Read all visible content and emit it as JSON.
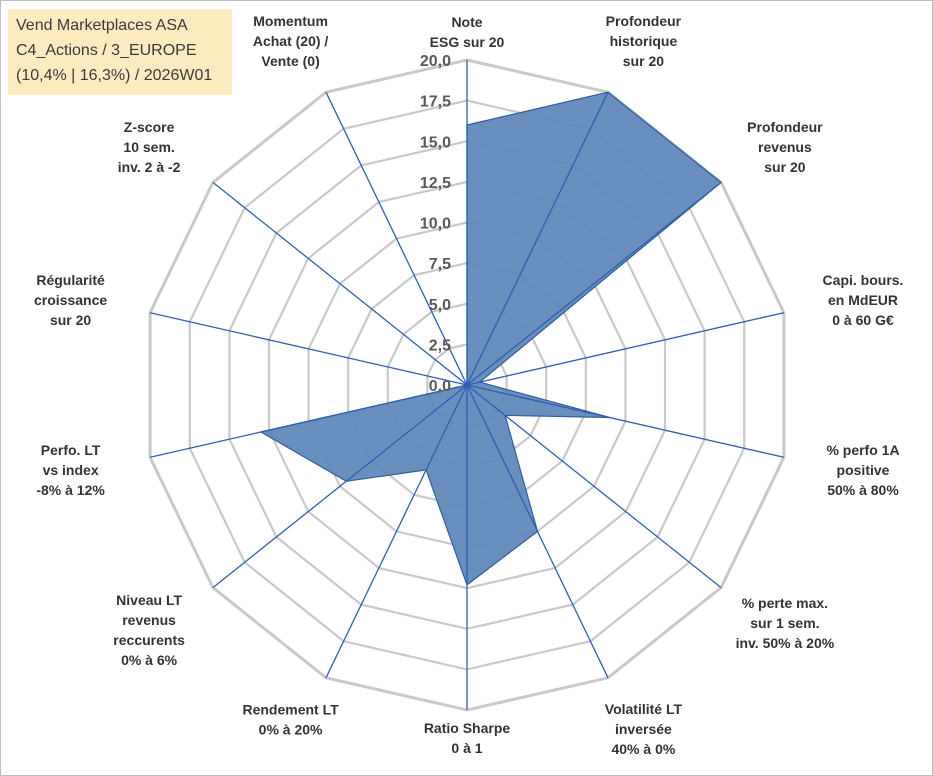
{
  "title_box": {
    "line1": "Vend Marketplaces ASA",
    "line2": "C4_Actions / 3_EUROPE",
    "line3": "(10,4% | 16,3%) / 2026W01"
  },
  "colors": {
    "fill": "#5b86b9",
    "stroke": "#2e5f9a",
    "spoke": "#2f5fb0",
    "grid": "#c9c9c9",
    "title_bg": "#fdebc0"
  },
  "chart_data": {
    "type": "radar",
    "rlim": [
      0,
      20
    ],
    "tick_values": [
      0,
      2.5,
      5,
      7.5,
      10,
      12.5,
      15,
      17.5,
      20
    ],
    "tick_labels": [
      "0,0",
      "2,5",
      "5,0",
      "7,5",
      "10,0",
      "12,5",
      "15,0",
      "17,5",
      "20,0"
    ],
    "grid": true,
    "axes": [
      "Note\nESG sur 20",
      "Profondeur\nhistorique\nsur 20",
      "Profondeur\nrevenus\nsur 20",
      "Capi. bours.\nen MdEUR\n0 à 60 G€",
      "% perfo 1A\npositive\n50% à 80%",
      "% perte max.\nsur 1 sem.\ninv. 50% à 20%",
      "Volatilité LT\ninversée\n40% à 0%",
      "Ratio Sharpe\n0 à 1",
      "Rendement LT\n0% à 20%",
      "Niveau LT\nrevenus\nreccurents\n0% à 6%",
      "Perfo. LT\nvs index\n-8% à 12%",
      "Régularité\ncroissance\nsur 20",
      "Z-score\n10 sem.\ninv. 2 à -2",
      "Momentum\nAchat (20) /\nVente (0)"
    ],
    "series": [
      {
        "values": [
          16,
          20,
          20,
          0.8,
          9,
          3,
          10,
          12.3,
          5.8,
          9.5,
          13,
          0,
          0,
          0
        ]
      }
    ]
  }
}
